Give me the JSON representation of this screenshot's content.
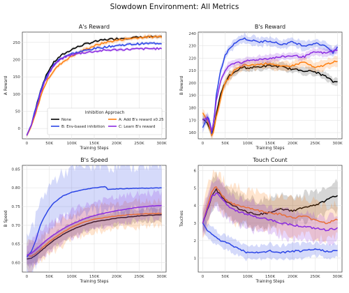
{
  "figure": {
    "title": "Slowdown Environment: All Metrics"
  },
  "legend": {
    "title": "Inhibition Approach",
    "entries": [
      {
        "name": "None",
        "color": "#000000"
      },
      {
        "name": "A: Add B's reward x0.25",
        "color": "#ff7f0e"
      },
      {
        "name": "B: Env-based inhibition",
        "color": "#2b45e6"
      },
      {
        "name": "C: Learn B's reward",
        "color": "#8a2be2"
      }
    ],
    "location": "lower-right of A's Reward"
  },
  "chart_data": [
    {
      "type": "line",
      "title": "A's Reward",
      "xlabel": "Training Steps",
      "ylabel": "A Reward",
      "xlim": [
        -10000,
        310000
      ],
      "ylim": [
        -30,
        280
      ],
      "xticks": [
        0,
        50000,
        100000,
        150000,
        200000,
        250000,
        300000
      ],
      "xtick_labels": [
        "0",
        "50K",
        "100K",
        "150K",
        "200K",
        "250K",
        "300K"
      ],
      "yticks": [
        0,
        50,
        100,
        150,
        200,
        250
      ],
      "ytick_labels": [
        "0",
        "50",
        "100",
        "150",
        "200",
        "250"
      ],
      "grid": true,
      "x": [
        0,
        10000,
        20000,
        30000,
        40000,
        50000,
        60000,
        70000,
        80000,
        90000,
        100000,
        125000,
        150000,
        175000,
        200000,
        225000,
        250000,
        275000,
        300000
      ],
      "series": [
        {
          "name": "None",
          "color": "#000000",
          "values": [
            -20,
            10,
            60,
            110,
            145,
            172,
            192,
            205,
            215,
            222,
            230,
            243,
            252,
            258,
            261,
            263,
            265,
            266,
            265
          ]
        },
        {
          "name": "A: Add B's reward x0.25",
          "color": "#ff7f0e",
          "values": [
            -20,
            5,
            45,
            90,
            125,
            150,
            168,
            182,
            193,
            202,
            210,
            227,
            240,
            250,
            256,
            261,
            264,
            266,
            267
          ]
        },
        {
          "name": "B: Env-based inhibition",
          "color": "#2b45e6",
          "values": [
            -20,
            12,
            60,
            108,
            140,
            165,
            185,
            198,
            207,
            213,
            217,
            225,
            232,
            237,
            241,
            244,
            246,
            247,
            248
          ]
        },
        {
          "name": "C: Learn B's reward",
          "color": "#8a2be2",
          "values": [
            -20,
            10,
            55,
            100,
            135,
            162,
            182,
            195,
            204,
            210,
            214,
            220,
            224,
            227,
            229,
            230,
            231,
            232,
            232
          ]
        }
      ]
    },
    {
      "type": "line",
      "title": "B's Reward",
      "xlabel": "Training Steps",
      "ylabel": "B Reward",
      "xlim": [
        -10000,
        310000
      ],
      "ylim": [
        155,
        241
      ],
      "xticks": [
        0,
        50000,
        100000,
        150000,
        200000,
        250000,
        300000
      ],
      "xtick_labels": [
        "0",
        "50K",
        "100K",
        "150K",
        "200K",
        "250K",
        "300K"
      ],
      "yticks": [
        160,
        170,
        180,
        190,
        200,
        210,
        220,
        230,
        240
      ],
      "ytick_labels": [
        "160",
        "170",
        "180",
        "190",
        "200",
        "210",
        "220",
        "230",
        "240"
      ],
      "grid": true,
      "x": [
        0,
        10000,
        15000,
        20000,
        25000,
        30000,
        40000,
        50000,
        60000,
        70000,
        80000,
        90000,
        100000,
        125000,
        150000,
        175000,
        200000,
        225000,
        250000,
        275000,
        290000,
        300000
      ],
      "series": [
        {
          "name": "None",
          "color": "#000000",
          "values": [
            171,
            168,
            163,
            160,
            163,
            175,
            192,
            200,
            206,
            208,
            211,
            213,
            212,
            213,
            214,
            213,
            211,
            210,
            209,
            205,
            201,
            201
          ]
        },
        {
          "name": "A: Add B's reward x0.25",
          "color": "#ff7f0e",
          "values": [
            176,
            170,
            165,
            158,
            162,
            172,
            188,
            200,
            205,
            210,
            212,
            214,
            214,
            215,
            216,
            213,
            214,
            217,
            212,
            215,
            217,
            217
          ]
        },
        {
          "name": "B: Env-based inhibition",
          "color": "#2b45e6",
          "values": [
            164,
            172,
            170,
            160,
            170,
            190,
            210,
            222,
            228,
            232,
            234,
            236,
            235,
            233,
            234,
            231,
            233,
            230,
            232,
            230,
            224,
            229
          ]
        },
        {
          "name": "C: Learn B's reward",
          "color": "#8a2be2",
          "values": [
            170,
            172,
            168,
            162,
            168,
            185,
            202,
            210,
            214,
            216,
            217,
            216,
            218,
            219,
            220,
            221,
            222,
            221,
            225,
            224,
            226,
            226
          ]
        }
      ]
    },
    {
      "type": "line",
      "title": "B's Speed",
      "xlabel": "Training Steps",
      "ylabel": "B Speed",
      "xlim": [
        -10000,
        310000
      ],
      "ylim": [
        0.575,
        0.86
      ],
      "xticks": [
        0,
        50000,
        100000,
        150000,
        200000,
        250000,
        300000
      ],
      "xtick_labels": [
        "0",
        "50K",
        "100K",
        "150K",
        "200K",
        "250K",
        "300K"
      ],
      "yticks": [
        0.6,
        0.65,
        0.7,
        0.75,
        0.8,
        0.85
      ],
      "ytick_labels": [
        "0.60",
        "0.65",
        "0.70",
        "0.75",
        "0.80",
        "0.85"
      ],
      "grid": true,
      "x": [
        0,
        10000,
        20000,
        30000,
        40000,
        50000,
        60000,
        80000,
        100000,
        125000,
        150000,
        175000,
        180000,
        200000,
        225000,
        250000,
        275000,
        300000
      ],
      "series": [
        {
          "name": "None",
          "color": "#000000",
          "values": [
            0.61,
            0.612,
            0.62,
            0.63,
            0.64,
            0.65,
            0.66,
            0.675,
            0.688,
            0.7,
            0.709,
            0.714,
            0.715,
            0.719,
            0.722,
            0.725,
            0.727,
            0.728
          ]
        },
        {
          "name": "A: Add B's reward x0.25",
          "color": "#ff7f0e",
          "values": [
            0.62,
            0.617,
            0.625,
            0.635,
            0.646,
            0.656,
            0.665,
            0.681,
            0.695,
            0.708,
            0.716,
            0.721,
            0.722,
            0.725,
            0.728,
            0.73,
            0.731,
            0.732
          ]
        },
        {
          "name": "B: Env-based inhibition",
          "color": "#2b45e6",
          "values": [
            0.615,
            0.63,
            0.66,
            0.7,
            0.725,
            0.745,
            0.76,
            0.778,
            0.788,
            0.795,
            0.8,
            0.803,
            0.796,
            0.797,
            0.798,
            0.799,
            0.799,
            0.8
          ]
        },
        {
          "name": "C: Learn B's reward",
          "color": "#8a2be2",
          "values": [
            0.62,
            0.625,
            0.635,
            0.646,
            0.656,
            0.666,
            0.675,
            0.69,
            0.703,
            0.716,
            0.726,
            0.733,
            0.734,
            0.739,
            0.744,
            0.748,
            0.751,
            0.753
          ]
        }
      ]
    },
    {
      "type": "line",
      "title": "Touch Count",
      "xlabel": "Training Steps",
      "ylabel": "Touches",
      "xlim": [
        -10000,
        310000
      ],
      "ylim": [
        0.2,
        6.3
      ],
      "xticks": [
        0,
        50000,
        100000,
        150000,
        200000,
        250000,
        300000
      ],
      "xtick_labels": [
        "0",
        "50K",
        "100K",
        "150K",
        "200K",
        "250K",
        "300K"
      ],
      "yticks": [
        1,
        2,
        3,
        4,
        5,
        6
      ],
      "ytick_labels": [
        "1",
        "2",
        "3",
        "4",
        "5",
        "6"
      ],
      "grid": true,
      "x": [
        0,
        10000,
        20000,
        30000,
        40000,
        50000,
        60000,
        75000,
        100000,
        125000,
        150000,
        175000,
        200000,
        225000,
        250000,
        275000,
        300000
      ],
      "series": [
        {
          "name": "None",
          "color": "#000000",
          "values": [
            3.0,
            3.7,
            4.5,
            4.9,
            4.6,
            4.3,
            4.1,
            3.9,
            3.6,
            3.5,
            3.6,
            3.8,
            3.7,
            3.9,
            4.0,
            4.3,
            4.6
          ]
        },
        {
          "name": "A: Add B's reward x0.25",
          "color": "#ff7f0e",
          "values": [
            3.0,
            3.9,
            4.8,
            5.1,
            4.7,
            4.4,
            4.2,
            4.0,
            3.9,
            3.7,
            3.6,
            3.5,
            3.3,
            3.4,
            3.2,
            3.0,
            3.2
          ]
        },
        {
          "name": "B: Env-based inhibition",
          "color": "#2b45e6",
          "values": [
            3.0,
            2.6,
            2.4,
            2.2,
            2.0,
            1.9,
            1.8,
            1.6,
            1.3,
            1.3,
            1.4,
            1.3,
            1.4,
            1.4,
            1.5,
            1.4,
            1.4
          ]
        },
        {
          "name": "C: Learn B's reward",
          "color": "#8a2be2",
          "values": [
            3.0,
            3.8,
            4.5,
            4.7,
            4.5,
            4.2,
            3.9,
            3.7,
            3.5,
            3.3,
            3.2,
            3.0,
            2.9,
            2.8,
            2.7,
            2.6,
            2.7
          ]
        }
      ]
    }
  ]
}
